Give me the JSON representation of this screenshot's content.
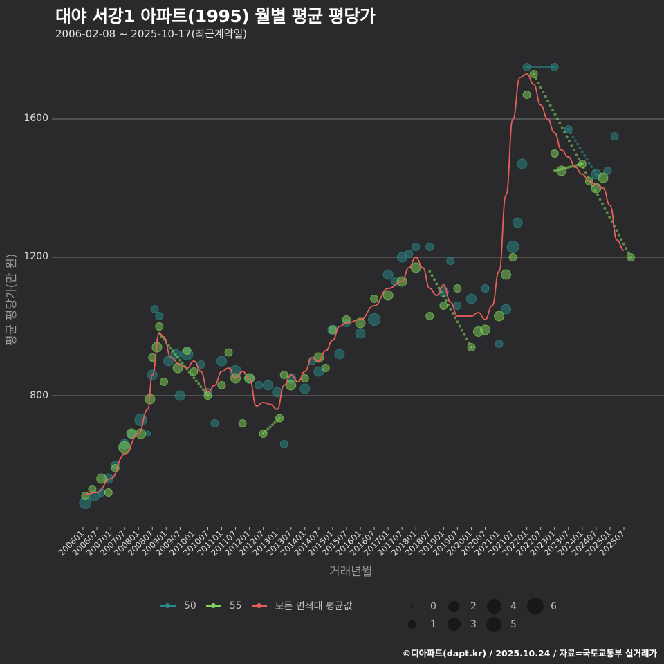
{
  "header": {
    "title": "대야 서강1 아파트(1995) 월별 평균 평당가",
    "subtitle": "2006-02-08 ~ 2025-10-17(최근계약일)"
  },
  "axes": {
    "ylabel": "평균 평당가(만 원)",
    "xlabel": "거래년월",
    "yticks": [
      "1600",
      "1200",
      "800"
    ],
    "xticks": [
      "200601",
      "200607",
      "200701",
      "200707",
      "200801",
      "200807",
      "200901",
      "200907",
      "201001",
      "201007",
      "201101",
      "201107",
      "201201",
      "201207",
      "201301",
      "201307",
      "201401",
      "201407",
      "201501",
      "201507",
      "201601",
      "201607",
      "201701",
      "201707",
      "201801",
      "201807",
      "201901",
      "201907",
      "202001",
      "202007",
      "202101",
      "202107",
      "202201",
      "202207",
      "202301",
      "202307",
      "202401",
      "202407",
      "202501",
      "202507"
    ]
  },
  "legend": {
    "series": [
      {
        "label": "50",
        "color": "#2a8a8a"
      },
      {
        "label": "55",
        "color": "#7fd35a"
      },
      {
        "label": "모든 면적대 평균값",
        "color": "#e8605c"
      }
    ],
    "sizes": [
      "0",
      "1",
      "2",
      "3",
      "4",
      "5",
      "6"
    ]
  },
  "footer": {
    "credit": "©디아파트(dapt.kr) / 2025.10.24 / 자료=국토교통부 실거래가"
  },
  "colors": {
    "background": "#2a292b",
    "grid": "#6a6a6a",
    "area50": "#2a8a8a",
    "area55": "#7fd35a",
    "average": "#e8605c"
  },
  "chart_data": {
    "type": "scatter",
    "title": "대야 서강1 아파트(1995) 월별 평균 평당가",
    "subtitle": "2006-02-08 ~ 2025-10-17(최근계약일)",
    "xlabel": "거래년월",
    "ylabel": "평균 평당가(만 원)",
    "ylim": [
      420,
      1790
    ],
    "yticks": [
      800,
      1200,
      1600
    ],
    "grid": "horizontal",
    "legend_position": "bottom",
    "size_encoding": "거래건수 (0-6)",
    "series": [
      {
        "name": "50",
        "color": "#2a8a8a",
        "points": [
          [
            "200602",
            490,
            4
          ],
          [
            "200606",
            510,
            3
          ],
          [
            "200609",
            520,
            2
          ],
          [
            "200612",
            560,
            3
          ],
          [
            "200703",
            600,
            2
          ],
          [
            "200707",
            660,
            3
          ],
          [
            "200710",
            690,
            2
          ],
          [
            "200802",
            730,
            4
          ],
          [
            "200805",
            690,
            1
          ],
          [
            "200807",
            860,
            3
          ],
          [
            "200808",
            1050,
            2
          ],
          [
            "200810",
            1030,
            2
          ],
          [
            "200902",
            900,
            3
          ],
          [
            "200905",
            920,
            3
          ],
          [
            "200907",
            800,
            3
          ],
          [
            "200910",
            920,
            4
          ],
          [
            "201004",
            890,
            2
          ],
          [
            "201007",
            810,
            2
          ],
          [
            "201010",
            720,
            2
          ],
          [
            "201101",
            900,
            3
          ],
          [
            "201107",
            870,
            4
          ],
          [
            "201201",
            850,
            3
          ],
          [
            "201205",
            830,
            2
          ],
          [
            "201209",
            830,
            3
          ],
          [
            "201301",
            810,
            3
          ],
          [
            "201304",
            660,
            2
          ],
          [
            "201307",
            850,
            3
          ],
          [
            "201401",
            820,
            3
          ],
          [
            "201404",
            900,
            2
          ],
          [
            "201407",
            870,
            3
          ],
          [
            "201501",
            990,
            3
          ],
          [
            "201504",
            920,
            3
          ],
          [
            "201507",
            1010,
            2
          ],
          [
            "201601",
            980,
            3
          ],
          [
            "201607",
            1020,
            4
          ],
          [
            "201701",
            1150,
            3
          ],
          [
            "201704",
            1130,
            2
          ],
          [
            "201707",
            1200,
            3
          ],
          [
            "201710",
            1210,
            2
          ],
          [
            "201801",
            1230,
            2
          ],
          [
            "201807",
            1230,
            2
          ],
          [
            "201901",
            1100,
            3
          ],
          [
            "201904",
            1190,
            2
          ],
          [
            "201907",
            1060,
            2
          ],
          [
            "202001",
            1080,
            3
          ],
          [
            "202007",
            1110,
            2
          ],
          [
            "202101",
            950,
            2
          ],
          [
            "202104",
            1050,
            3
          ],
          [
            "202107",
            1230,
            4
          ],
          [
            "202109",
            1300,
            3
          ],
          [
            "202111",
            1470,
            3
          ],
          [
            "202201",
            1750,
            2
          ],
          [
            "202301",
            1750,
            2
          ],
          [
            "202307",
            1570,
            2
          ],
          [
            "202407",
            1440,
            3
          ],
          [
            "202412",
            1450,
            2
          ],
          [
            "202503",
            1550,
            2
          ]
        ]
      },
      {
        "name": "55",
        "color": "#7fd35a",
        "points": [
          [
            "200602",
            510,
            2
          ],
          [
            "200605",
            530,
            2
          ],
          [
            "200609",
            560,
            3
          ],
          [
            "200612",
            520,
            2
          ],
          [
            "200703",
            590,
            2
          ],
          [
            "200707",
            650,
            4
          ],
          [
            "200710",
            690,
            3
          ],
          [
            "200802",
            690,
            3
          ],
          [
            "200806",
            790,
            3
          ],
          [
            "200807",
            910,
            2
          ],
          [
            "200809",
            940,
            3
          ],
          [
            "200810",
            1000,
            2
          ],
          [
            "200812",
            840,
            2
          ],
          [
            "200906",
            880,
            3
          ],
          [
            "200910",
            930,
            2
          ],
          [
            "201001",
            870,
            2
          ],
          [
            "201007",
            800,
            2
          ],
          [
            "201101",
            830,
            2
          ],
          [
            "201104",
            925,
            2
          ],
          [
            "201107",
            850,
            3
          ],
          [
            "201110",
            720,
            2
          ],
          [
            "201201",
            850,
            3
          ],
          [
            "201207",
            690,
            2
          ],
          [
            "201302",
            735,
            2
          ],
          [
            "201304",
            860,
            2
          ],
          [
            "201307",
            830,
            3
          ],
          [
            "201401",
            850,
            2
          ],
          [
            "201407",
            910,
            3
          ],
          [
            "201410",
            880,
            2
          ],
          [
            "201501",
            990,
            2
          ],
          [
            "201507",
            1020,
            2
          ],
          [
            "201601",
            1010,
            3
          ],
          [
            "201607",
            1080,
            2
          ],
          [
            "201701",
            1090,
            3
          ],
          [
            "201707",
            1130,
            3
          ],
          [
            "201801",
            1170,
            3
          ],
          [
            "201807",
            1030,
            2
          ],
          [
            "201901",
            1060,
            2
          ],
          [
            "201907",
            1110,
            2
          ],
          [
            "202001",
            940,
            2
          ],
          [
            "202004",
            985,
            3
          ],
          [
            "202007",
            990,
            3
          ],
          [
            "202101",
            1030,
            3
          ],
          [
            "202104",
            1150,
            3
          ],
          [
            "202107",
            1200,
            2
          ],
          [
            "202201",
            1670,
            2
          ],
          [
            "202204",
            1730,
            2
          ],
          [
            "202301",
            1500,
            2
          ],
          [
            "202304",
            1450,
            3
          ],
          [
            "202401",
            1470,
            2
          ],
          [
            "202404",
            1420,
            2
          ],
          [
            "202407",
            1400,
            3
          ],
          [
            "202410",
            1430,
            3
          ],
          [
            "202510",
            1200,
            2
          ]
        ]
      }
    ],
    "average_line": {
      "name": "모든 면적대 평균값",
      "color": "#e8605c",
      "points": [
        [
          "200602",
          515
        ],
        [
          "200607",
          520
        ],
        [
          "200701",
          560
        ],
        [
          "200707",
          630
        ],
        [
          "200801",
          690
        ],
        [
          "200805",
          760
        ],
        [
          "200807",
          860
        ],
        [
          "200810",
          980
        ],
        [
          "200812",
          970
        ],
        [
          "200903",
          910
        ],
        [
          "200907",
          890
        ],
        [
          "200910",
          880
        ],
        [
          "201001",
          900
        ],
        [
          "201004",
          870
        ],
        [
          "201007",
          810
        ],
        [
          "201010",
          830
        ],
        [
          "201101",
          870
        ],
        [
          "201104",
          880
        ],
        [
          "201107",
          850
        ],
        [
          "201110",
          870
        ],
        [
          "201201",
          850
        ],
        [
          "201204",
          770
        ],
        [
          "201207",
          780
        ],
        [
          "201210",
          775
        ],
        [
          "201301",
          760
        ],
        [
          "201304",
          830
        ],
        [
          "201307",
          860
        ],
        [
          "201310",
          840
        ],
        [
          "201401",
          870
        ],
        [
          "201404",
          910
        ],
        [
          "201407",
          900
        ],
        [
          "201410",
          930
        ],
        [
          "201501",
          960
        ],
        [
          "201504",
          1000
        ],
        [
          "201507",
          1010
        ],
        [
          "201601",
          1020
        ],
        [
          "201607",
          1060
        ],
        [
          "201701",
          1110
        ],
        [
          "201707",
          1130
        ],
        [
          "201710",
          1170
        ],
        [
          "201801",
          1200
        ],
        [
          "201804",
          1170
        ],
        [
          "201807",
          1110
        ],
        [
          "201810",
          1090
        ],
        [
          "201901",
          1120
        ],
        [
          "201904",
          1070
        ],
        [
          "201907",
          1030
        ],
        [
          "202001",
          1030
        ],
        [
          "202004",
          1040
        ],
        [
          "202007",
          1020
        ],
        [
          "202010",
          1060
        ],
        [
          "202101",
          1160
        ],
        [
          "202104",
          1380
        ],
        [
          "202107",
          1600
        ],
        [
          "202110",
          1720
        ],
        [
          "202201",
          1730
        ],
        [
          "202204",
          1700
        ],
        [
          "202207",
          1640
        ],
        [
          "202210",
          1600
        ],
        [
          "202301",
          1560
        ],
        [
          "202304",
          1510
        ],
        [
          "202307",
          1490
        ],
        [
          "202310",
          1460
        ],
        [
          "202401",
          1440
        ],
        [
          "202404",
          1420
        ],
        [
          "202407",
          1410
        ],
        [
          "202410",
          1400
        ],
        [
          "202501",
          1350
        ],
        [
          "202504",
          1250
        ],
        [
          "202507",
          1220
        ]
      ]
    }
  }
}
